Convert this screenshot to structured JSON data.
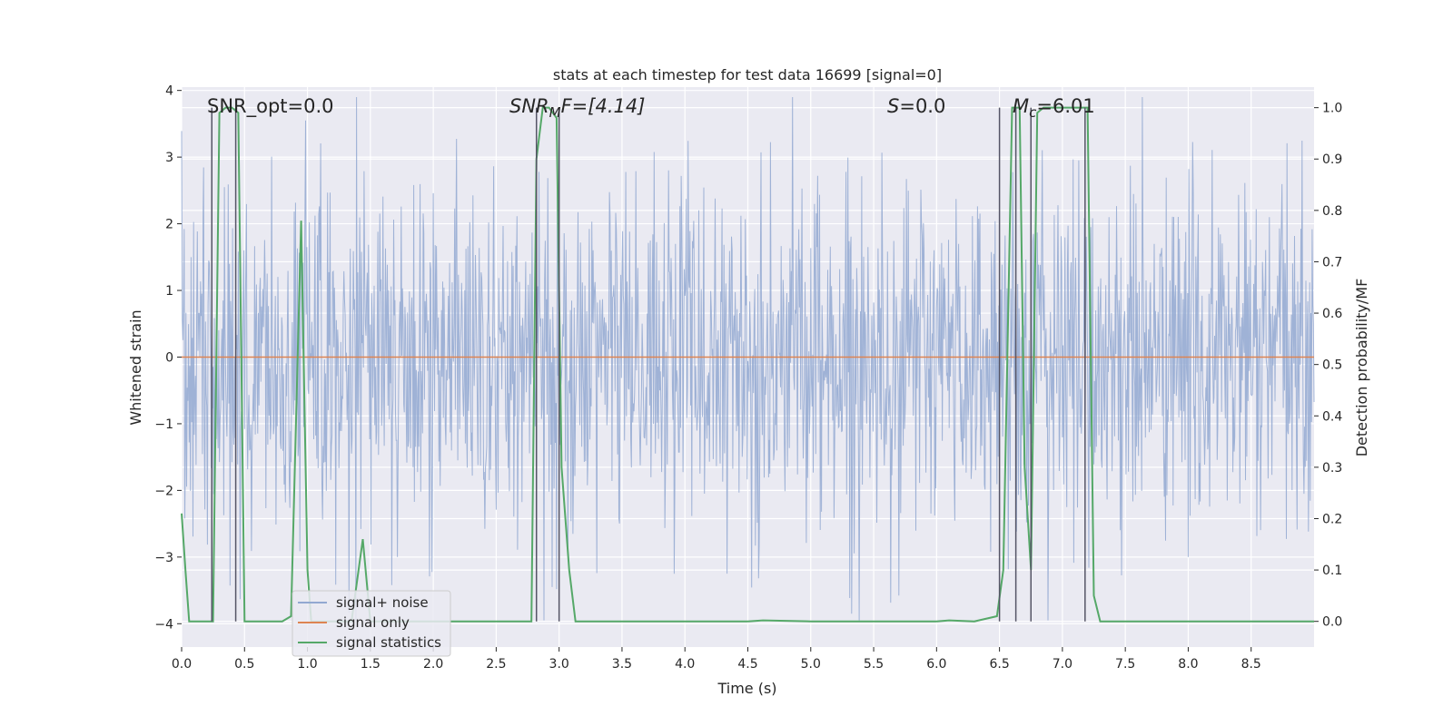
{
  "chart_data": {
    "type": "line",
    "title": "stats at each timestep for test data 16699 [signal=0]",
    "xlabel": "Time (s)",
    "ylabel": "Whitened strain",
    "y2label": "Detection probability/MF",
    "xlim": [
      0.0,
      9.0
    ],
    "ylim": [
      -4.35,
      4.05
    ],
    "y2lim": [
      -0.05,
      1.04
    ],
    "x_ticks": [
      "0.0",
      "0.5",
      "1.0",
      "1.5",
      "2.0",
      "2.5",
      "3.0",
      "3.5",
      "4.0",
      "4.5",
      "5.0",
      "5.5",
      "6.0",
      "6.5",
      "7.0",
      "7.5",
      "8.0",
      "8.5"
    ],
    "y_ticks": [
      "4",
      "3",
      "2",
      "1",
      "0",
      "−1",
      "−2",
      "−3",
      "−4"
    ],
    "y2_ticks": [
      "1.0",
      "0.9",
      "0.8",
      "0.7",
      "0.6",
      "0.5",
      "0.4",
      "0.3",
      "0.2",
      "0.1",
      "0.0"
    ],
    "grid": true,
    "legend_position": "lower-left",
    "annotations": {
      "snr_opt": "SNR_opt=0.0",
      "snr_mf_base": "SNR",
      "snr_mf_sub": "M",
      "snr_mf_rest": "F=[4.14]",
      "s_var": "S",
      "s_rest": "=0.0",
      "mc_var": "M",
      "mc_sub": "c",
      "mc_rest": "=6.01"
    },
    "series": [
      {
        "name": "signal+ noise",
        "color": "#92a8d1",
        "axis": "left",
        "noise_amplitude": 2.1,
        "x_range": [
          0.0,
          9.0
        ]
      },
      {
        "name": "signal only",
        "color": "#dd8452",
        "axis": "left",
        "x": [
          0.0,
          9.0
        ],
        "y": [
          0.0,
          0.0
        ]
      },
      {
        "name": "signal statistics",
        "color": "#55a868",
        "axis": "right",
        "x": [
          0.0,
          0.03,
          0.06,
          0.25,
          0.3,
          0.35,
          0.4,
          0.45,
          0.5,
          0.6,
          0.8,
          0.87,
          0.95,
          1.0,
          1.03,
          1.1,
          1.35,
          1.44,
          1.5,
          1.6,
          2.0,
          2.5,
          2.78,
          2.82,
          2.87,
          2.92,
          2.98,
          3.02,
          3.08,
          3.13,
          3.5,
          4.0,
          4.5,
          4.62,
          5.0,
          5.5,
          6.0,
          6.1,
          6.3,
          6.48,
          6.53,
          6.6,
          6.66,
          6.7,
          6.75,
          6.8,
          6.85,
          6.9,
          7.0,
          7.1,
          7.2,
          7.25,
          7.3,
          7.5,
          8.0,
          8.5,
          9.0
        ],
        "y": [
          0.21,
          0.1,
          0.0,
          0.0,
          0.99,
          1.0,
          1.0,
          0.99,
          0.0,
          0.0,
          0.0,
          0.01,
          0.78,
          0.1,
          0.0,
          0.0,
          0.0,
          0.16,
          0.0,
          0.0,
          0.0,
          0.0,
          0.0,
          0.9,
          1.0,
          1.0,
          0.98,
          0.3,
          0.1,
          0.0,
          0.0,
          0.0,
          0.0,
          0.002,
          0.0,
          0.0,
          0.0,
          0.002,
          0.0,
          0.01,
          0.1,
          1.0,
          1.0,
          0.3,
          0.1,
          0.99,
          1.0,
          1.0,
          1.0,
          1.0,
          1.0,
          0.05,
          0.0,
          0.0,
          0.0,
          0.0,
          0.0
        ]
      }
    ],
    "vlines": [
      0.24,
      0.43,
      2.82,
      3.0,
      6.5,
      6.63,
      6.75,
      7.18
    ],
    "vline_color": "#555566"
  }
}
